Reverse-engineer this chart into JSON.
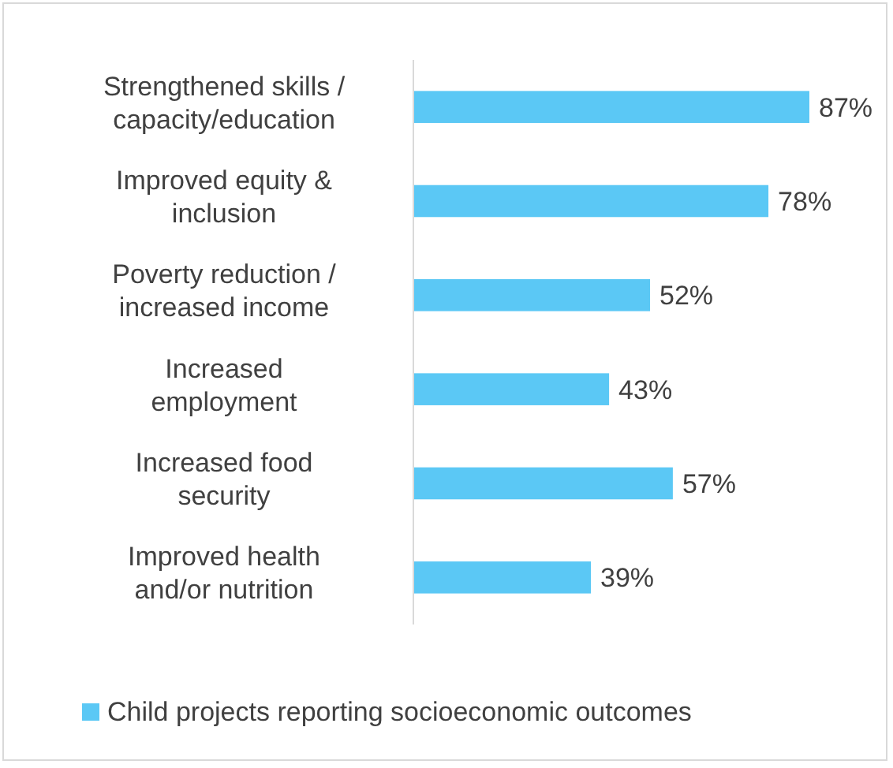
{
  "chart_data": {
    "type": "bar",
    "orientation": "horizontal",
    "categories": [
      "Strengthened skills /\ncapacity/education",
      "Improved equity &\ninclusion",
      "Poverty reduction /\nincreased income",
      "Increased\nemployment",
      "Increased food\nsecurity",
      "Improved health\nand/or nutrition"
    ],
    "series": [
      {
        "name": "Child projects reporting socioeconomic outcomes",
        "color": "#5bc8f5",
        "values": [
          87,
          78,
          52,
          43,
          57,
          39
        ],
        "value_labels": [
          "87%",
          "78%",
          "52%",
          "43%",
          "57%",
          "39%"
        ]
      }
    ],
    "legend": "bottom"
  }
}
